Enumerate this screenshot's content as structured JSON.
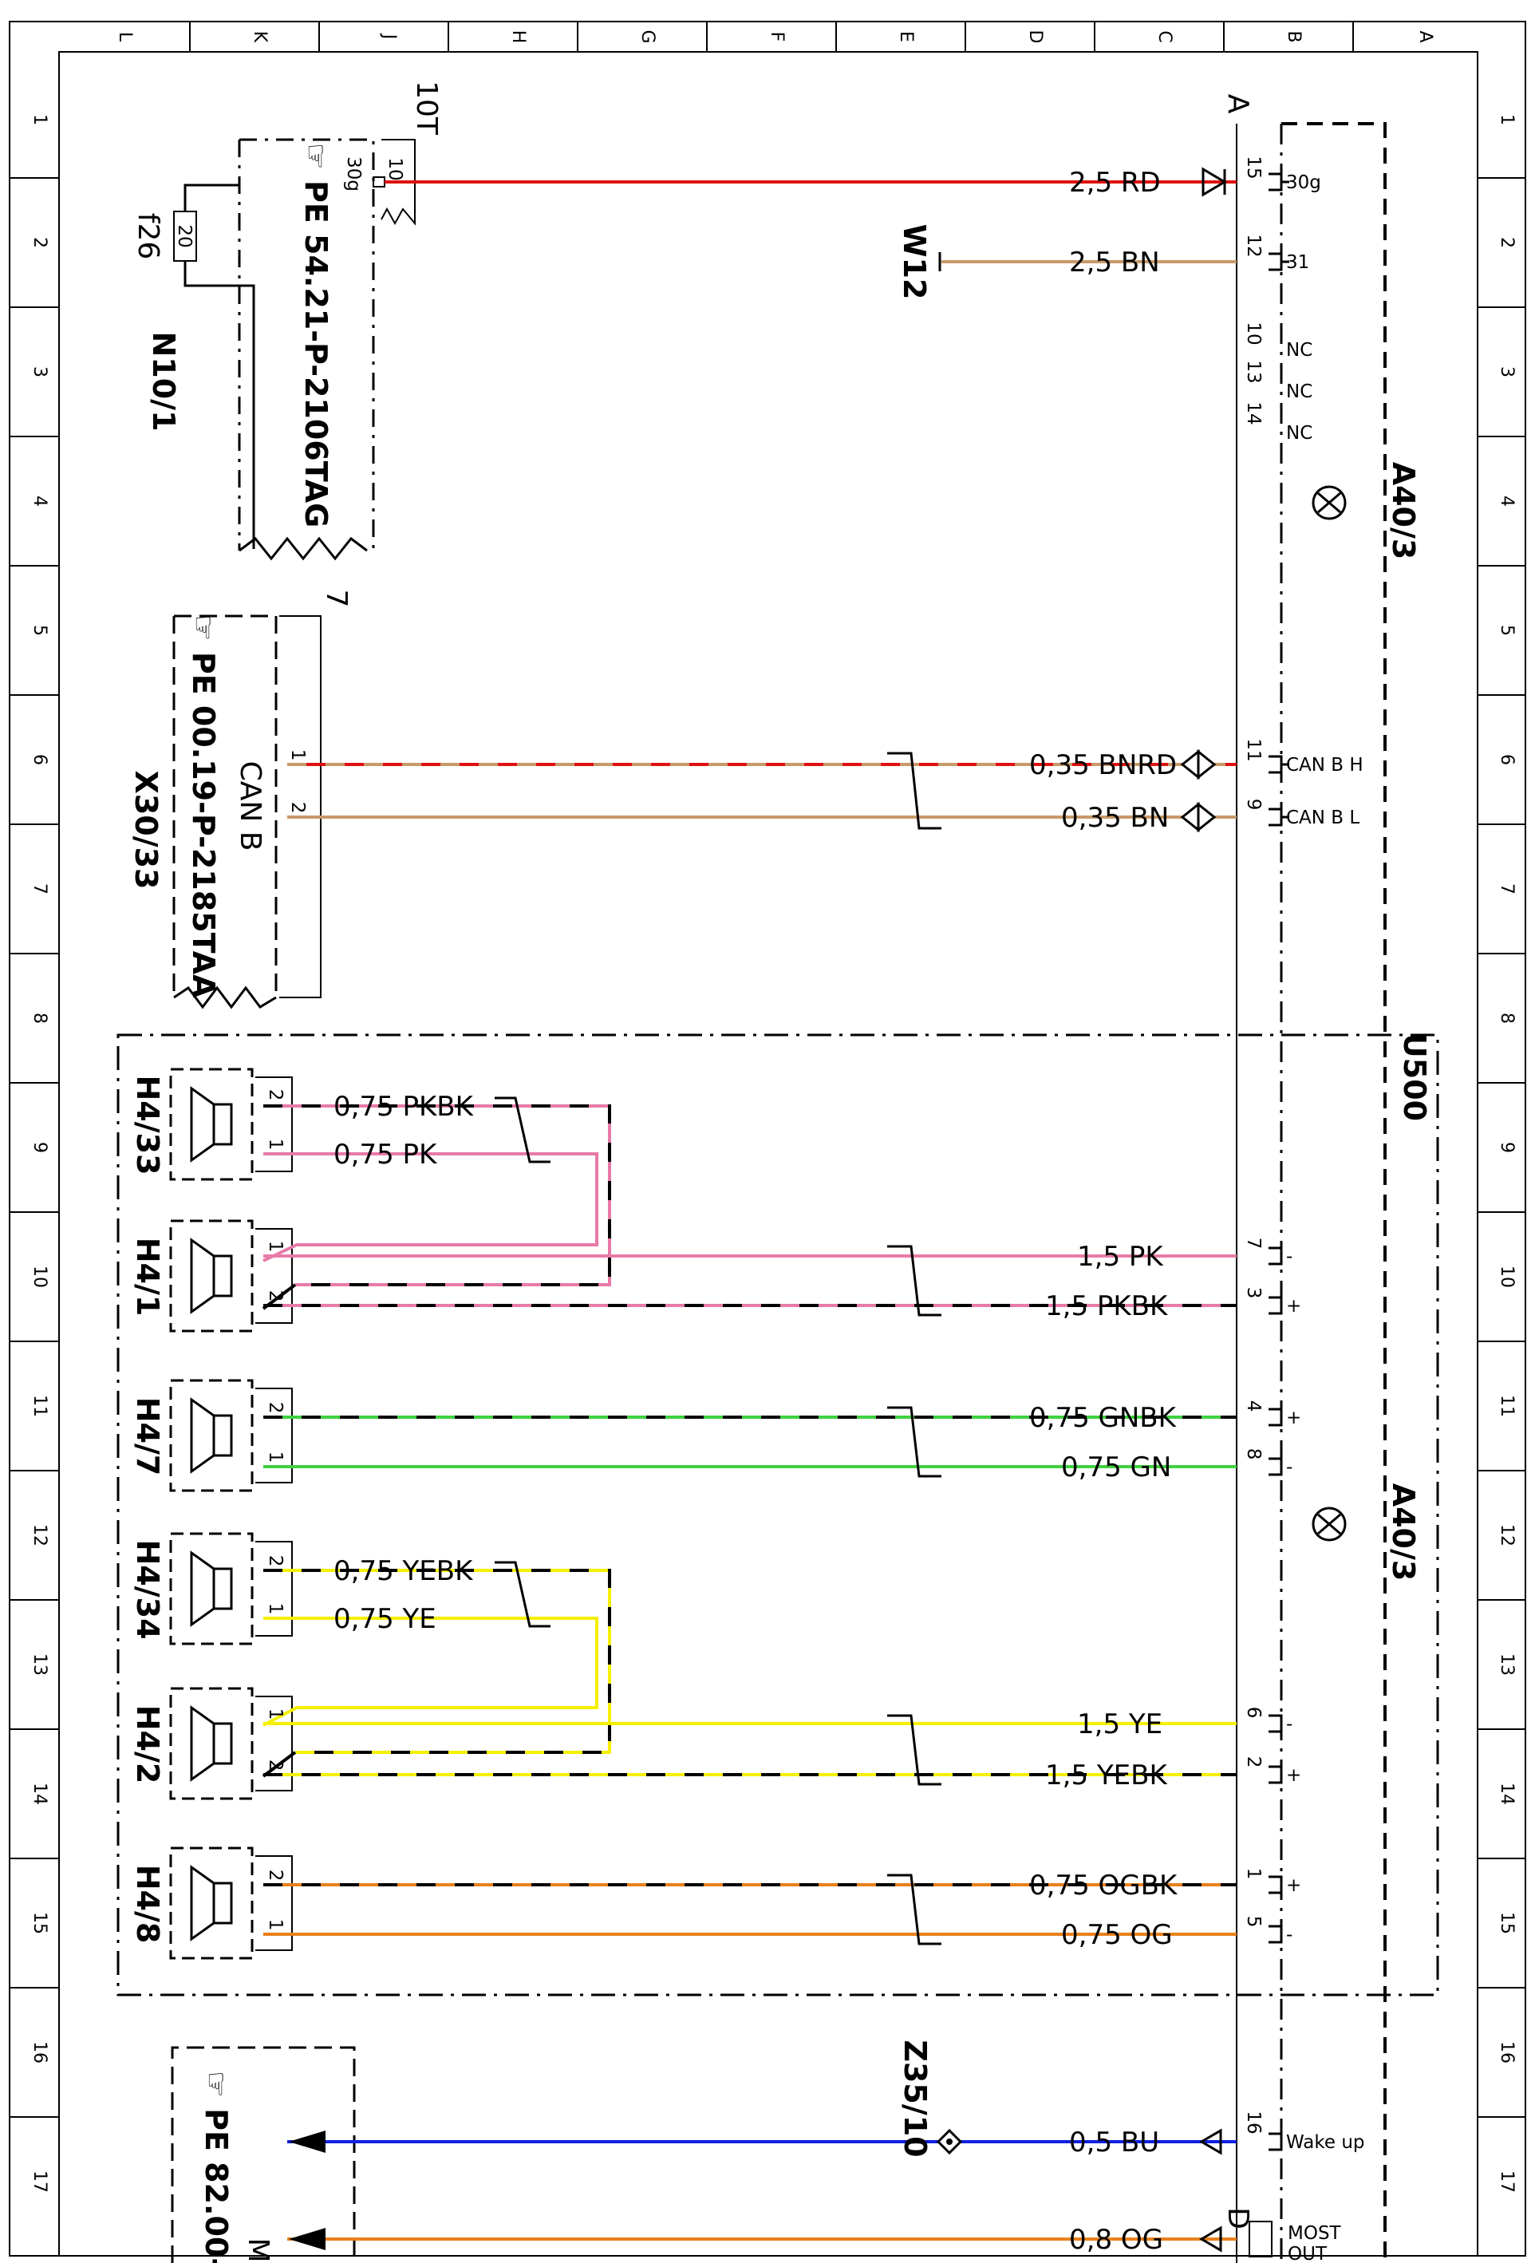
{
  "frame": {
    "columns": [
      "L",
      "K",
      "J",
      "H",
      "G",
      "F",
      "E",
      "D",
      "C",
      "B",
      "A"
    ],
    "rows": [
      "1",
      "2",
      "3",
      "4",
      "5",
      "6",
      "7",
      "8",
      "9",
      "10",
      "11",
      "12",
      "13",
      "14",
      "15",
      "16",
      "17"
    ]
  },
  "devices": {
    "a40_top": "A40/3",
    "a40_mid": "A40/3",
    "u500": "U500",
    "n10": "N10/1",
    "x30": "X30/33",
    "w12": "W12",
    "z35": "Z35/10",
    "h4_33": "H4/33",
    "h4_1": "H4/1",
    "h4_7": "H4/7",
    "h4_34": "H4/34",
    "h4_2": "H4/2",
    "h4_8": "H4/8"
  },
  "refs": {
    "pe_fuse": "PE 54.21-P-2106TAG",
    "pe_can": "PE 00.19-P-2185TAA",
    "pe_most": "PE 82.00-"
  },
  "labels": {
    "can_b": "CAN B",
    "fuse_block": "10T",
    "fuse_name": "f26",
    "fuse_val": "20",
    "conn_a": "A",
    "conn_d": "D",
    "x30_num": "7",
    "most_cut": "M"
  },
  "wires": {
    "w_rd": "2,5 RD",
    "w_bn": "2,5 BN",
    "w_bnrd": "0,35 BNRD",
    "w_canbn": "0,35 BN",
    "w_pkbk_s": "0,75 PKBK",
    "w_pk_s": "0,75 PK",
    "w_pk": "1,5 PK",
    "w_pkbk": "1,5 PKBK",
    "w_gnbk": "0,75 GNBK",
    "w_gn": "0,75 GN",
    "w_yebk_s": "0,75 YEBK",
    "w_ye_s": "0,75 YE",
    "w_ye": "1,5 YE",
    "w_yebk": "1,5 YEBK",
    "w_ogbk": "0,75 OGBK",
    "w_og": "0,75 OG",
    "w_bu": "0,5 BU",
    "w_og8": "0,8 OG"
  },
  "pins": {
    "p15": "15",
    "p12": "12",
    "p10": "10",
    "p13": "13",
    "p14": "14",
    "p11": "11",
    "p9": "9",
    "p7": "7",
    "p3": "3",
    "p4": "4",
    "p8": "8",
    "p6": "6",
    "p2": "2",
    "p1": "1",
    "p5": "5",
    "p16": "16",
    "fuse_in": "10",
    "fuse_out": "30g"
  },
  "terms": {
    "t30g": "30g",
    "t31": "31",
    "tnc": "NC",
    "tcanh": "CAN B H",
    "tcanl": "CAN B L",
    "tminus": "-",
    "tplus": "+",
    "twake": "Wake up",
    "tmost": "MOST",
    "tout": "OUT"
  },
  "colors": {
    "RD": "#e01010",
    "BN": "#c8996a",
    "PK": "#e87aa8",
    "GN": "#3fd13f",
    "YE": "#f4f000",
    "OG": "#e8801a",
    "BU": "#1020e0",
    "BK": "#000000"
  }
}
